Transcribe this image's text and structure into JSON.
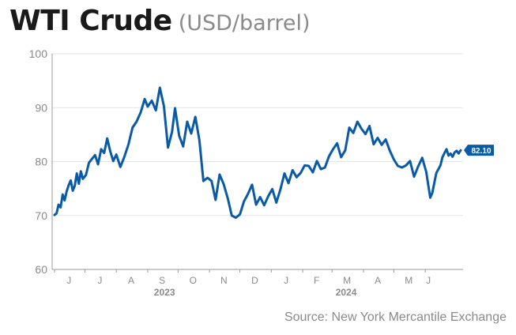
{
  "title": "WTI Crude",
  "subtitle": "(USD/barrel)",
  "source": "Source: New York Mercantile Exchange",
  "colors": {
    "line": "#0a5aa6",
    "grid": "#e4e4e4",
    "axis": "#9a9a9a",
    "tick_text": "#8a8a8a",
    "label_bg": "#0a5aa6"
  },
  "chart_data": {
    "type": "line",
    "title": "WTI Crude",
    "xlabel": "",
    "ylabel": "",
    "ylim": [
      60,
      100
    ],
    "yticks": [
      60,
      70,
      80,
      90,
      100
    ],
    "grid": true,
    "month_labels": [
      "J",
      "J",
      "A",
      "S",
      "O",
      "N",
      "D",
      "J",
      "F",
      "M",
      "A",
      "M",
      "J"
    ],
    "year_labels": [
      "2023",
      "2024"
    ],
    "last_value_label": "82.10",
    "series": [
      {
        "name": "",
        "x": [
          "2023-06-01",
          "2023-06-03",
          "2023-06-05",
          "2023-06-07",
          "2023-06-09",
          "2023-06-11",
          "2023-06-13",
          "2023-06-15",
          "2023-06-17",
          "2023-06-19",
          "2023-06-21",
          "2023-06-23",
          "2023-06-25",
          "2023-06-27",
          "2023-06-29",
          "2023-07-02",
          "2023-07-05",
          "2023-07-08",
          "2023-07-11",
          "2023-07-14",
          "2023-07-17",
          "2023-07-20",
          "2023-07-23",
          "2023-07-26",
          "2023-07-29",
          "2023-08-01",
          "2023-08-05",
          "2023-08-09",
          "2023-08-13",
          "2023-08-17",
          "2023-08-21",
          "2023-08-25",
          "2023-08-29",
          "2023-09-01",
          "2023-09-05",
          "2023-09-09",
          "2023-09-13",
          "2023-09-17",
          "2023-09-21",
          "2023-09-25",
          "2023-09-28",
          "2023-10-02",
          "2023-10-06",
          "2023-10-10",
          "2023-10-14",
          "2023-10-18",
          "2023-10-22",
          "2023-10-26",
          "2023-10-30",
          "2023-11-03",
          "2023-11-07",
          "2023-11-11",
          "2023-11-15",
          "2023-11-19",
          "2023-11-23",
          "2023-11-27",
          "2023-12-01",
          "2023-12-05",
          "2023-12-09",
          "2023-12-13",
          "2023-12-17",
          "2023-12-21",
          "2023-12-25",
          "2023-12-29",
          "2024-01-02",
          "2024-01-06",
          "2024-01-10",
          "2024-01-14",
          "2024-01-18",
          "2024-01-22",
          "2024-01-26",
          "2024-01-30",
          "2024-02-03",
          "2024-02-07",
          "2024-02-11",
          "2024-02-15",
          "2024-02-19",
          "2024-02-23",
          "2024-02-27",
          "2024-03-02",
          "2024-03-06",
          "2024-03-10",
          "2024-03-14",
          "2024-03-18",
          "2024-03-22",
          "2024-03-26",
          "2024-03-30",
          "2024-04-03",
          "2024-04-07",
          "2024-04-11",
          "2024-04-15",
          "2024-04-19",
          "2024-04-23",
          "2024-04-27",
          "2024-05-01",
          "2024-05-05",
          "2024-05-09",
          "2024-05-13",
          "2024-05-17",
          "2024-05-21",
          "2024-05-25",
          "2024-05-29",
          "2024-06-02",
          "2024-06-04",
          "2024-06-06",
          "2024-06-08",
          "2024-06-10",
          "2024-06-12",
          "2024-06-14",
          "2024-06-16",
          "2024-06-18",
          "2024-06-20",
          "2024-06-22",
          "2024-06-24",
          "2024-06-26",
          "2024-06-28",
          "2024-06-30",
          "2024-07-02",
          "2024-07-04",
          "2024-07-06"
        ],
        "values": [
          70.1,
          70.4,
          72.0,
          71.5,
          73.9,
          72.8,
          74.5,
          75.6,
          76.5,
          74.6,
          75.5,
          77.8,
          75.9,
          78.2,
          76.8,
          77.5,
          79.8,
          80.5,
          81.2,
          79.5,
          82.3,
          81.6,
          84.3,
          81.9,
          80.1,
          81.3,
          79.0,
          80.9,
          83.2,
          86.3,
          87.4,
          89.1,
          91.6,
          90.2,
          91.3,
          89.5,
          93.7,
          90.3,
          82.6,
          85.5,
          89.9,
          84.8,
          82.8,
          87.4,
          85.2,
          88.3,
          84.0,
          76.4,
          77.0,
          76.4,
          72.9,
          77.6,
          75.8,
          73.2,
          70.0,
          69.6,
          70.2,
          72.6,
          74.0,
          75.7,
          72.0,
          73.4,
          71.9,
          73.6,
          74.9,
          72.4,
          74.8,
          77.8,
          76.0,
          78.4,
          77.1,
          77.9,
          79.3,
          79.2,
          78.0,
          80.1,
          78.6,
          78.9,
          81.0,
          82.3,
          83.4,
          80.8,
          82.1,
          86.3,
          85.3,
          87.4,
          86.1,
          85.1,
          86.6,
          83.2,
          84.4,
          83.1,
          84.1,
          82.0,
          80.4,
          79.2,
          78.9,
          79.3,
          80.1,
          77.2,
          79.1,
          80.7,
          78.1,
          75.6,
          73.3,
          74.2,
          76.1,
          77.9,
          78.6,
          79.3,
          80.8,
          81.6,
          82.3,
          81.1,
          81.5,
          80.9,
          81.7,
          82.0,
          81.5,
          82.1
        ]
      }
    ]
  }
}
